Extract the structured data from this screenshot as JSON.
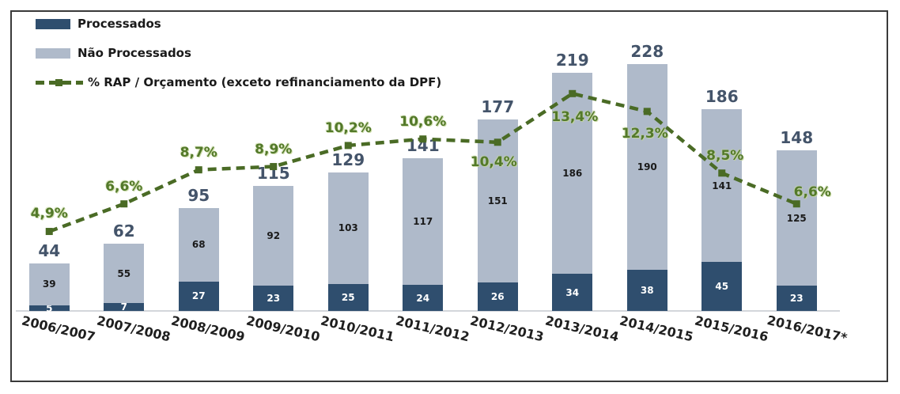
{
  "chart_data": {
    "type": "bar",
    "subtype": "stacked-columns-with-line-overlay",
    "categories": [
      "2006/2007",
      "2007/2008",
      "2008/2009",
      "2009/2010",
      "2010/2011",
      "2011/2012",
      "2012/2013",
      "2013/2014",
      "2014/2015",
      "2015/2016",
      "2016/2017*"
    ],
    "series": [
      {
        "name": "Processados",
        "role": "bar-bottom-segment",
        "color": "#2F4E6E",
        "label_color": "#FFFFFF",
        "values": [
          5,
          7,
          27,
          23,
          25,
          24,
          26,
          34,
          38,
          45,
          23
        ]
      },
      {
        "name": "Não Processados",
        "role": "bar-top-segment",
        "color": "#AFBACA",
        "label_color": "#1A1A1A",
        "values": [
          39,
          55,
          68,
          92,
          103,
          117,
          151,
          186,
          190,
          141,
          125
        ]
      },
      {
        "name": "% RAP / Orçamento (exceto refinanciamento da DPF)",
        "role": "line",
        "color": "#4A6B25",
        "values": [
          4.9,
          6.6,
          8.7,
          8.9,
          10.2,
          10.6,
          10.4,
          13.4,
          12.3,
          8.5,
          6.6
        ],
        "point_labels": [
          "4,9%",
          "6,6%",
          "8,7%",
          "8,9%",
          "10,2%",
          "10,6%",
          "10,4%",
          "13,4%",
          "12,3%",
          "8,5%",
          "6,6%"
        ]
      }
    ],
    "totals": [
      44,
      62,
      95,
      115,
      129,
      141,
      177,
      219,
      228,
      186,
      148
    ],
    "total_label_color": "#44546A",
    "pct_label_color": "#53792A",
    "legend_position": "top-left",
    "grid": false,
    "value_axis_visible": false
  }
}
